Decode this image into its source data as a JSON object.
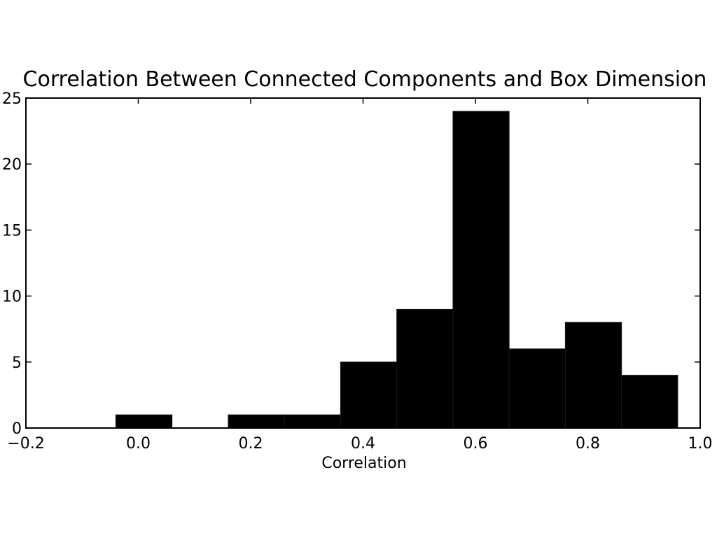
{
  "chart_data": {
    "type": "bar",
    "title": "Correlation Between Connected Components and Box Dimension",
    "xlabel": "Correlation",
    "ylabel": "",
    "xlim": [
      -0.2,
      1.0
    ],
    "ylim": [
      0,
      25
    ],
    "x_ticks": [
      "−0.2",
      "0.0",
      "0.2",
      "0.4",
      "0.6",
      "0.8",
      "1.0"
    ],
    "x_tick_values": [
      -0.2,
      0.0,
      0.2,
      0.4,
      0.6,
      0.8,
      1.0
    ],
    "y_ticks": [
      "0",
      "5",
      "10",
      "15",
      "20",
      "25"
    ],
    "y_tick_values": [
      0,
      5,
      10,
      15,
      20,
      25
    ],
    "bins": [
      {
        "start": -0.04,
        "end": 0.06,
        "count": 1
      },
      {
        "start": 0.06,
        "end": 0.16,
        "count": 0
      },
      {
        "start": 0.16,
        "end": 0.26,
        "count": 1
      },
      {
        "start": 0.26,
        "end": 0.36,
        "count": 1
      },
      {
        "start": 0.36,
        "end": 0.46,
        "count": 5
      },
      {
        "start": 0.46,
        "end": 0.56,
        "count": 9
      },
      {
        "start": 0.56,
        "end": 0.66,
        "count": 24
      },
      {
        "start": 0.66,
        "end": 0.76,
        "count": 6
      },
      {
        "start": 0.76,
        "end": 0.86,
        "count": 8
      },
      {
        "start": 0.86,
        "end": 0.96,
        "count": 4
      }
    ],
    "bar_color": "#000000",
    "grid": false,
    "legend": "none"
  }
}
